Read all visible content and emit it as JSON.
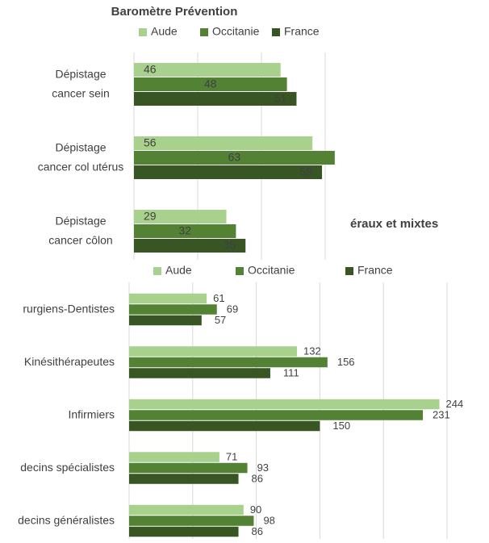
{
  "chart_data": [
    {
      "type": "barh",
      "title": "Baromètre Prévention",
      "categories": [
        [
          "Dépistage",
          "cancer sein"
        ],
        [
          "Dépistage",
          "cancer col utérus"
        ],
        [
          "Dépistage",
          "cancer côlon"
        ]
      ],
      "series": [
        {
          "name": "Aude",
          "color": "#a9d18e",
          "values": [
            46,
            56,
            29
          ]
        },
        {
          "name": "Occitanie",
          "color": "#548235",
          "values": [
            48,
            63,
            32
          ]
        },
        {
          "name": "France",
          "color": "#375623",
          "values": [
            51,
            59,
            35
          ]
        }
      ],
      "xlim": [
        0,
        60
      ],
      "xticks": [
        0,
        20,
        40,
        60
      ],
      "grid": true,
      "labels": "inside"
    },
    {
      "type": "barh",
      "title": "éraux et mixtes",
      "categories": [
        [
          "rurgiens-Dentistes"
        ],
        [
          "Kinésithérapeutes"
        ],
        [
          "Infirmiers"
        ],
        [
          "decins spécialistes"
        ],
        [
          "decins généralistes"
        ]
      ],
      "series": [
        {
          "name": "Aude",
          "color": "#a9d18e",
          "values": [
            61,
            132,
            244,
            71,
            90
          ]
        },
        {
          "name": "Occitanie",
          "color": "#548235",
          "values": [
            69,
            156,
            231,
            93,
            98
          ]
        },
        {
          "name": "France",
          "color": "#375623",
          "values": [
            57,
            111,
            150,
            86,
            86
          ]
        }
      ],
      "xlim": [
        0,
        250
      ],
      "xticks": [
        0,
        50,
        100,
        150,
        200,
        250
      ],
      "grid": true,
      "labels": "outside"
    }
  ]
}
